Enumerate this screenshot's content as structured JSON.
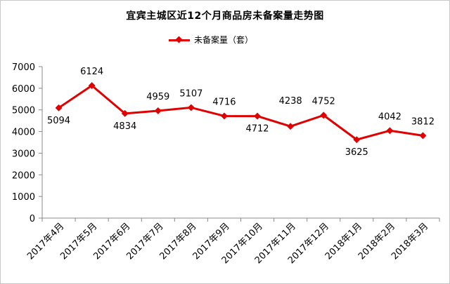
{
  "chart_data": {
    "type": "line",
    "title": "宜宾主城区近12个月商品房未备案量走势图",
    "categories": [
      "2017年4月",
      "2017年5月",
      "2017年6月",
      "2017年7月",
      "2017年8月",
      "2017年9月",
      "2017年10月",
      "2017年11月",
      "2017年12月",
      "2018年1月",
      "2018年2月",
      "2018年3月"
    ],
    "series": [
      {
        "name": "未备案量（套）",
        "values": [
          5094,
          6124,
          4834,
          4959,
          5107,
          4716,
          4712,
          4238,
          4752,
          3625,
          4042,
          3812
        ],
        "color": "#e00000",
        "marker": "diamond"
      }
    ],
    "y_ticks": [
      "0",
      "1000",
      "2000",
      "3000",
      "4000",
      "5000",
      "6000",
      "7000"
    ],
    "ylim": [
      0,
      7000
    ],
    "legend_position": "top",
    "grid": false
  }
}
